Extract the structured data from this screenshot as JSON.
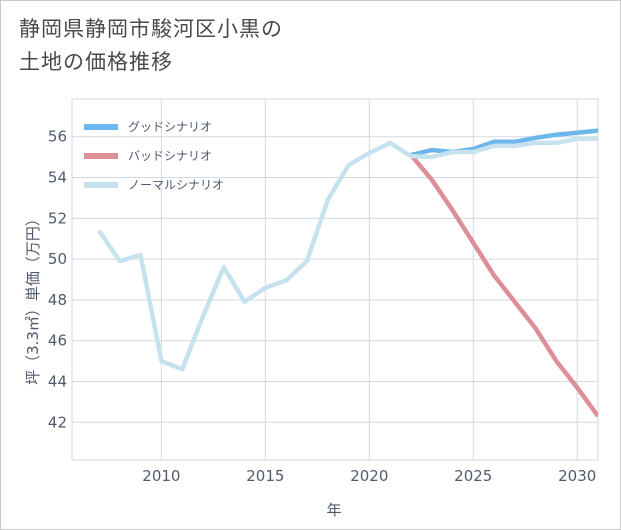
{
  "title": {
    "line1": "静岡県静岡市駿河区小黒の",
    "line2": "土地の価格推移"
  },
  "chart_data": {
    "type": "line",
    "xlabel": "年",
    "ylabel": "坪（3.3㎡）単価（万円）",
    "xlim": [
      2005.7,
      2031
    ],
    "ylim": [
      40.15,
      57.85
    ],
    "x_ticks": [
      2010,
      2015,
      2020,
      2025,
      2030
    ],
    "x_tick_labels": [
      "2010",
      "2015",
      "2020",
      "2025",
      "2030"
    ],
    "y_ticks": [
      42,
      44,
      46,
      48,
      50,
      52,
      54,
      56
    ],
    "y_tick_labels": [
      "42",
      "44",
      "46",
      "48",
      "50",
      "52",
      "54",
      "56"
    ],
    "grid": true,
    "legend_position": "top-left",
    "series": [
      {
        "name": "グッドシナリオ",
        "color": "#6cb6ec",
        "x": [
          2022,
          2023,
          2024,
          2025,
          2026,
          2027,
          2028,
          2029,
          2030,
          2031
        ],
        "values": [
          55.1,
          55.35,
          55.25,
          55.4,
          55.75,
          55.75,
          55.95,
          56.1,
          56.2,
          56.3
        ]
      },
      {
        "name": "バッドシナリオ",
        "color": "#dc8f96",
        "x": [
          2022,
          2023,
          2024,
          2025,
          2026,
          2027,
          2028,
          2029,
          2030,
          2031
        ],
        "values": [
          55.1,
          53.9,
          52.4,
          50.8,
          49.2,
          47.9,
          46.6,
          45.0,
          43.7,
          42.3
        ]
      },
      {
        "name": "ノーマルシナリオ",
        "color": "#c6e2ef",
        "x": [
          2007,
          2008,
          2009,
          2010,
          2011,
          2012,
          2013,
          2014,
          2015,
          2016,
          2017,
          2018,
          2019,
          2020,
          2021,
          2022,
          2023,
          2024,
          2025,
          2026,
          2027,
          2028,
          2029,
          2030,
          2031
        ],
        "values": [
          51.4,
          49.9,
          50.2,
          45.0,
          44.6,
          47.2,
          49.6,
          47.9,
          48.6,
          48.95,
          49.9,
          52.9,
          54.6,
          55.2,
          55.7,
          55.05,
          55.0,
          55.25,
          55.25,
          55.55,
          55.55,
          55.7,
          55.7,
          55.9,
          55.9
        ]
      }
    ]
  }
}
